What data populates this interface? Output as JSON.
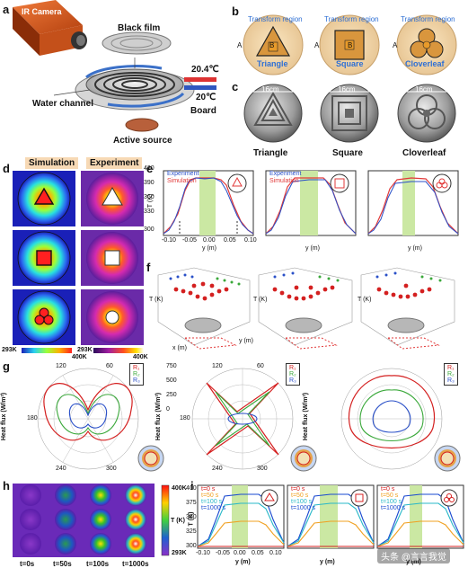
{
  "panels": {
    "a": {
      "label": "a",
      "camera": "IR Camera",
      "film": "Black film",
      "channel": "Water channel",
      "board": "Board",
      "source": "Active source",
      "t_hot": "20.4℃",
      "t_cold": "20℃"
    },
    "b": {
      "label": "b",
      "region_label": "Transform region",
      "letter_A": "A",
      "letter_B": "B",
      "shapes": [
        "Triangle",
        "Square",
        "Cloverleaf"
      ]
    },
    "c": {
      "label": "c",
      "size": "16cm",
      "shapes": [
        "Triangle",
        "Square",
        "Cloverleaf"
      ]
    },
    "d": {
      "label": "d",
      "sim": "Simulation",
      "exp": "Experiment",
      "sim_min": "293K",
      "sim_max": "400K",
      "exp_min": "293K",
      "exp_max": "400K"
    },
    "e": {
      "label": "e",
      "ylabel": "T (K)",
      "xlabel": "y (m)",
      "legend": [
        "Experiment",
        "Simulation"
      ],
      "yticks": [
        "420",
        "390",
        "360",
        "330",
        "300"
      ],
      "xticks": [
        "-0.10",
        "-0.05",
        "0.00",
        "0.05",
        "0.10"
      ]
    },
    "f": {
      "label": "f",
      "zlabel": "T (K)",
      "xlabel": "x (m)",
      "ylabel": "y (m)"
    },
    "g": {
      "label": "g",
      "ylabel": "Heat flux (W/m²)",
      "legend": [
        "R₁",
        "R₂",
        "R₃"
      ],
      "angles": [
        "120",
        "60",
        "180",
        "0",
        "240",
        "300"
      ],
      "radial_ticks": [
        "750",
        "500",
        "250",
        "0"
      ]
    },
    "h": {
      "label": "h",
      "times": [
        "t=0s",
        "t=50s",
        "t=100s",
        "t=1000s"
      ],
      "cb_max": "400K",
      "cb_min": "293K",
      "cb_label": "T (K)"
    },
    "i": {
      "label": "i",
      "ylabel": "T (K)",
      "xlabel": "y (m)",
      "legend": [
        "t=0 s",
        "t=50 s",
        "t=100 s",
        "t=1000 s"
      ],
      "yticks": [
        "400",
        "375",
        "350",
        "325",
        "300"
      ],
      "xticks": [
        "-0.10",
        "-0.05",
        "0.00",
        "0.05",
        "0.10"
      ]
    }
  },
  "watermark": "头条 @言言我觉",
  "colors": {
    "legend_exp": "#2a50c8",
    "legend_sim": "#e23a3a",
    "green_band": "#cbe8a3"
  }
}
